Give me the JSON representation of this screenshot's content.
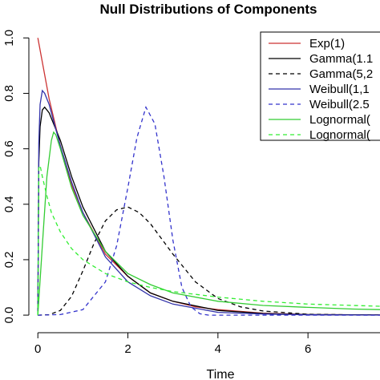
{
  "chart_data": {
    "type": "line",
    "title": "Null Distributions of Components",
    "xlabel": "Time",
    "ylabel": "",
    "xlim": [
      -0.2,
      7.6
    ],
    "ylim": [
      -0.02,
      1.05
    ],
    "x_ticks": [
      "0",
      "2",
      "4",
      "6"
    ],
    "y_ticks": [
      "0.0",
      "0.2",
      "0.4",
      "0.6",
      "0.8",
      "1.0"
    ],
    "grid": false,
    "legend_position": "top-right",
    "series": [
      {
        "name": "Exp(1)",
        "color": "#cc3333",
        "dash": "solid",
        "x": [
          0,
          0.25,
          0.5,
          0.75,
          1,
          1.5,
          2,
          2.5,
          3,
          3.5,
          4,
          5,
          6,
          7,
          7.6
        ],
        "y": [
          1.0,
          0.78,
          0.61,
          0.47,
          0.37,
          0.22,
          0.14,
          0.08,
          0.05,
          0.03,
          0.02,
          0.007,
          0.002,
          0.001,
          0.0005
        ]
      },
      {
        "name": "Gamma(1.1",
        "color": "#000000",
        "dash": "solid",
        "x": [
          0,
          0.02,
          0.05,
          0.1,
          0.15,
          0.25,
          0.5,
          0.75,
          1,
          1.5,
          2,
          2.5,
          3,
          4,
          5,
          6,
          7,
          7.6
        ],
        "y": [
          0,
          0.55,
          0.68,
          0.74,
          0.75,
          0.73,
          0.63,
          0.5,
          0.39,
          0.23,
          0.14,
          0.08,
          0.05,
          0.017,
          0.006,
          0.002,
          0.001,
          0.0005
        ]
      },
      {
        "name": "Gamma(5,2",
        "color": "#000000",
        "dash": "dashed",
        "x": [
          0,
          0.25,
          0.5,
          0.75,
          1,
          1.25,
          1.5,
          1.75,
          2,
          2.25,
          2.5,
          3,
          3.5,
          4,
          4.5,
          5,
          6,
          7,
          7.6
        ],
        "y": [
          0,
          0.0014,
          0.017,
          0.068,
          0.16,
          0.26,
          0.34,
          0.38,
          0.39,
          0.37,
          0.33,
          0.22,
          0.12,
          0.06,
          0.03,
          0.015,
          0.003,
          0.001,
          0.0005
        ]
      },
      {
        "name": "Weibull(1,1",
        "color": "#3333aa",
        "dash": "solid",
        "x": [
          0,
          0.02,
          0.05,
          0.1,
          0.15,
          0.25,
          0.5,
          0.75,
          1,
          1.5,
          2,
          2.5,
          3,
          4,
          5,
          6,
          7,
          7.6
        ],
        "y": [
          0,
          0.62,
          0.76,
          0.81,
          0.8,
          0.76,
          0.61,
          0.48,
          0.37,
          0.21,
          0.12,
          0.07,
          0.04,
          0.01,
          0.004,
          0.001,
          0.0005,
          0.0003
        ]
      },
      {
        "name": "Weibull(2.5",
        "color": "#3333cc",
        "dash": "dashed",
        "x": [
          0,
          0.5,
          1,
          1.5,
          1.75,
          2,
          2.2,
          2.4,
          2.6,
          2.8,
          3,
          3.2,
          3.4,
          3.6,
          3.8,
          4,
          5,
          6,
          7,
          7.6
        ],
        "y": [
          0,
          0.002,
          0.02,
          0.12,
          0.25,
          0.46,
          0.64,
          0.75,
          0.69,
          0.5,
          0.27,
          0.1,
          0.03,
          0.005,
          0,
          0,
          0,
          0,
          0,
          0
        ]
      },
      {
        "name": "Lognormal(",
        "color": "#33cc33",
        "dash": "solid",
        "x": [
          0,
          0.1,
          0.2,
          0.3,
          0.35,
          0.4,
          0.5,
          0.75,
          1,
          1.5,
          2,
          2.5,
          3,
          4,
          5,
          6,
          7,
          7.6
        ],
        "y": [
          0,
          0.25,
          0.5,
          0.63,
          0.66,
          0.65,
          0.6,
          0.46,
          0.36,
          0.23,
          0.15,
          0.11,
          0.08,
          0.05,
          0.035,
          0.028,
          0.022,
          0.02
        ]
      },
      {
        "name": "Lognormal(",
        "color": "#33ee33",
        "dash": "dashed",
        "x": [
          0,
          0.02,
          0.05,
          0.1,
          0.2,
          0.3,
          0.5,
          0.75,
          1,
          1.5,
          2,
          2.5,
          3,
          4,
          5,
          6,
          7,
          7.6
        ],
        "y": [
          0,
          0.53,
          0.54,
          0.5,
          0.43,
          0.37,
          0.3,
          0.24,
          0.2,
          0.15,
          0.12,
          0.1,
          0.085,
          0.065,
          0.05,
          0.04,
          0.035,
          0.032
        ]
      }
    ]
  }
}
